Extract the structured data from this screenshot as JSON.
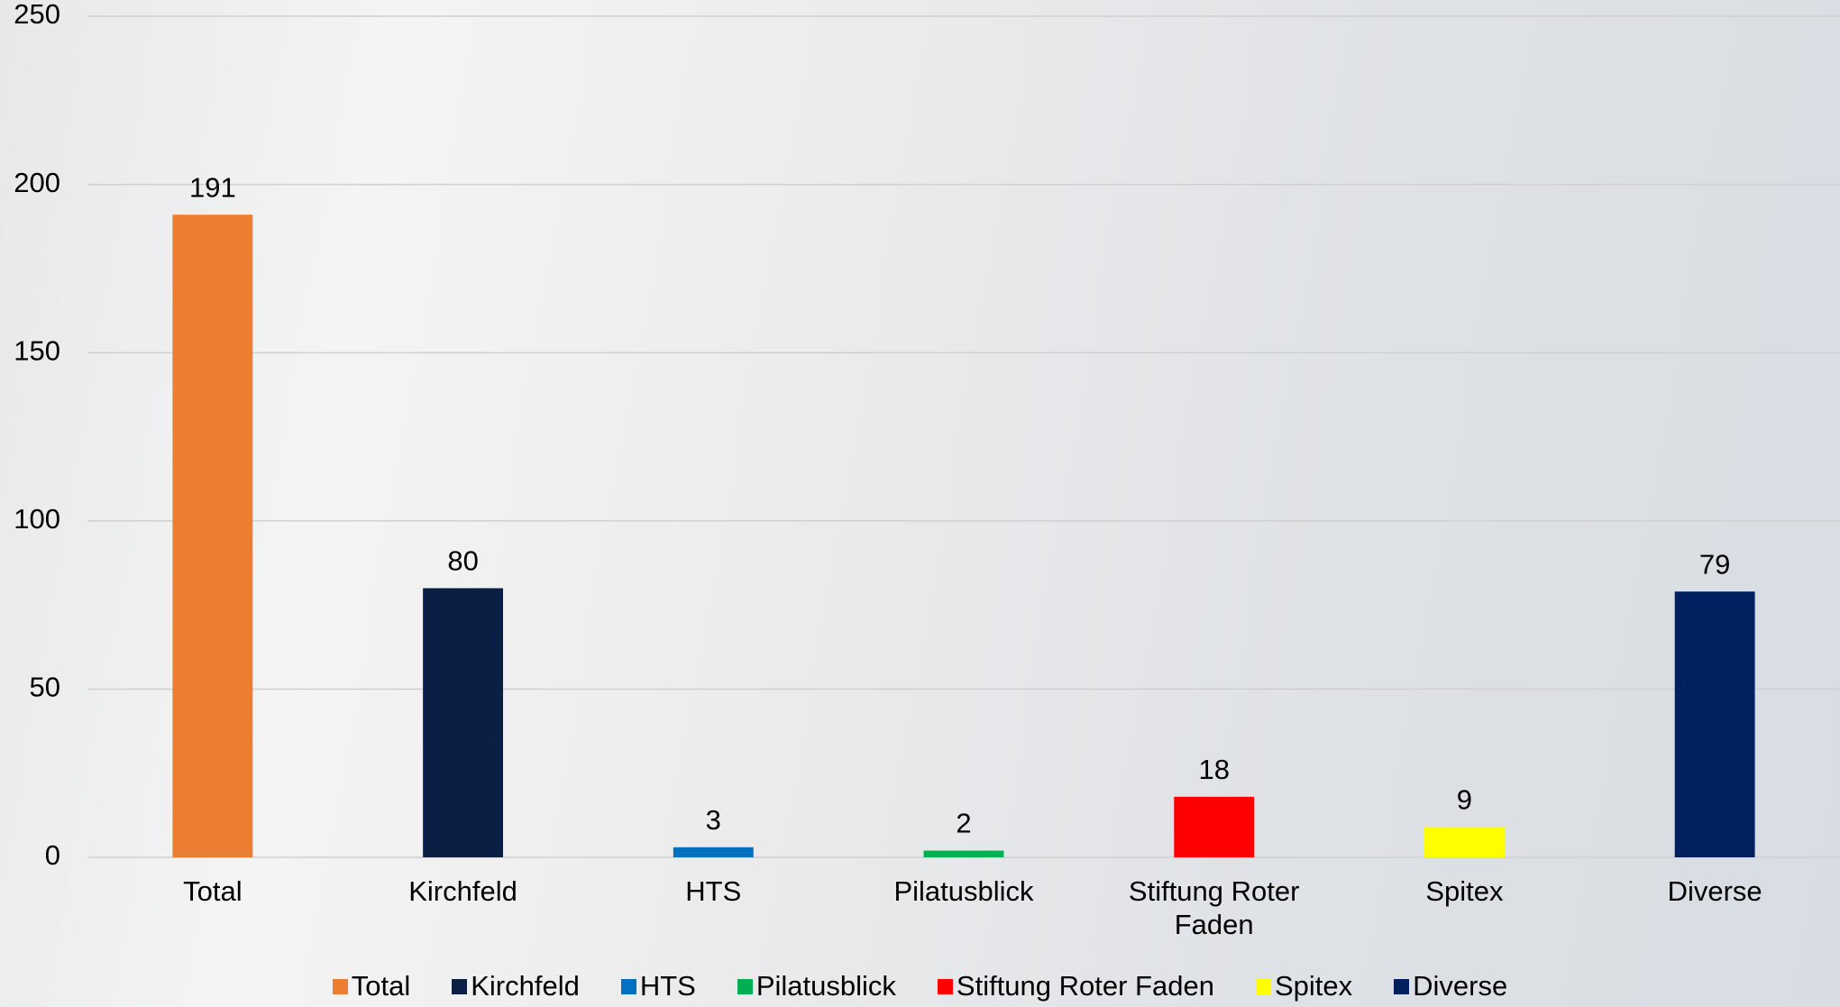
{
  "chart_data": {
    "type": "bar",
    "categories": [
      "Total",
      "Kirchfeld",
      "HTS",
      "Pilatusblick",
      "Stiftung Roter Faden",
      "Spitex",
      "Diverse"
    ],
    "values": [
      191,
      80,
      3,
      2,
      18,
      9,
      79
    ],
    "colors": [
      "#ed7d31",
      "#0b1f45",
      "#0070c0",
      "#00b050",
      "#ff0000",
      "#ffff00",
      "#002060"
    ],
    "ylim": [
      0,
      250
    ],
    "yticks": [
      0,
      50,
      100,
      150,
      200,
      250
    ],
    "grid": true,
    "legend": "bottom"
  }
}
